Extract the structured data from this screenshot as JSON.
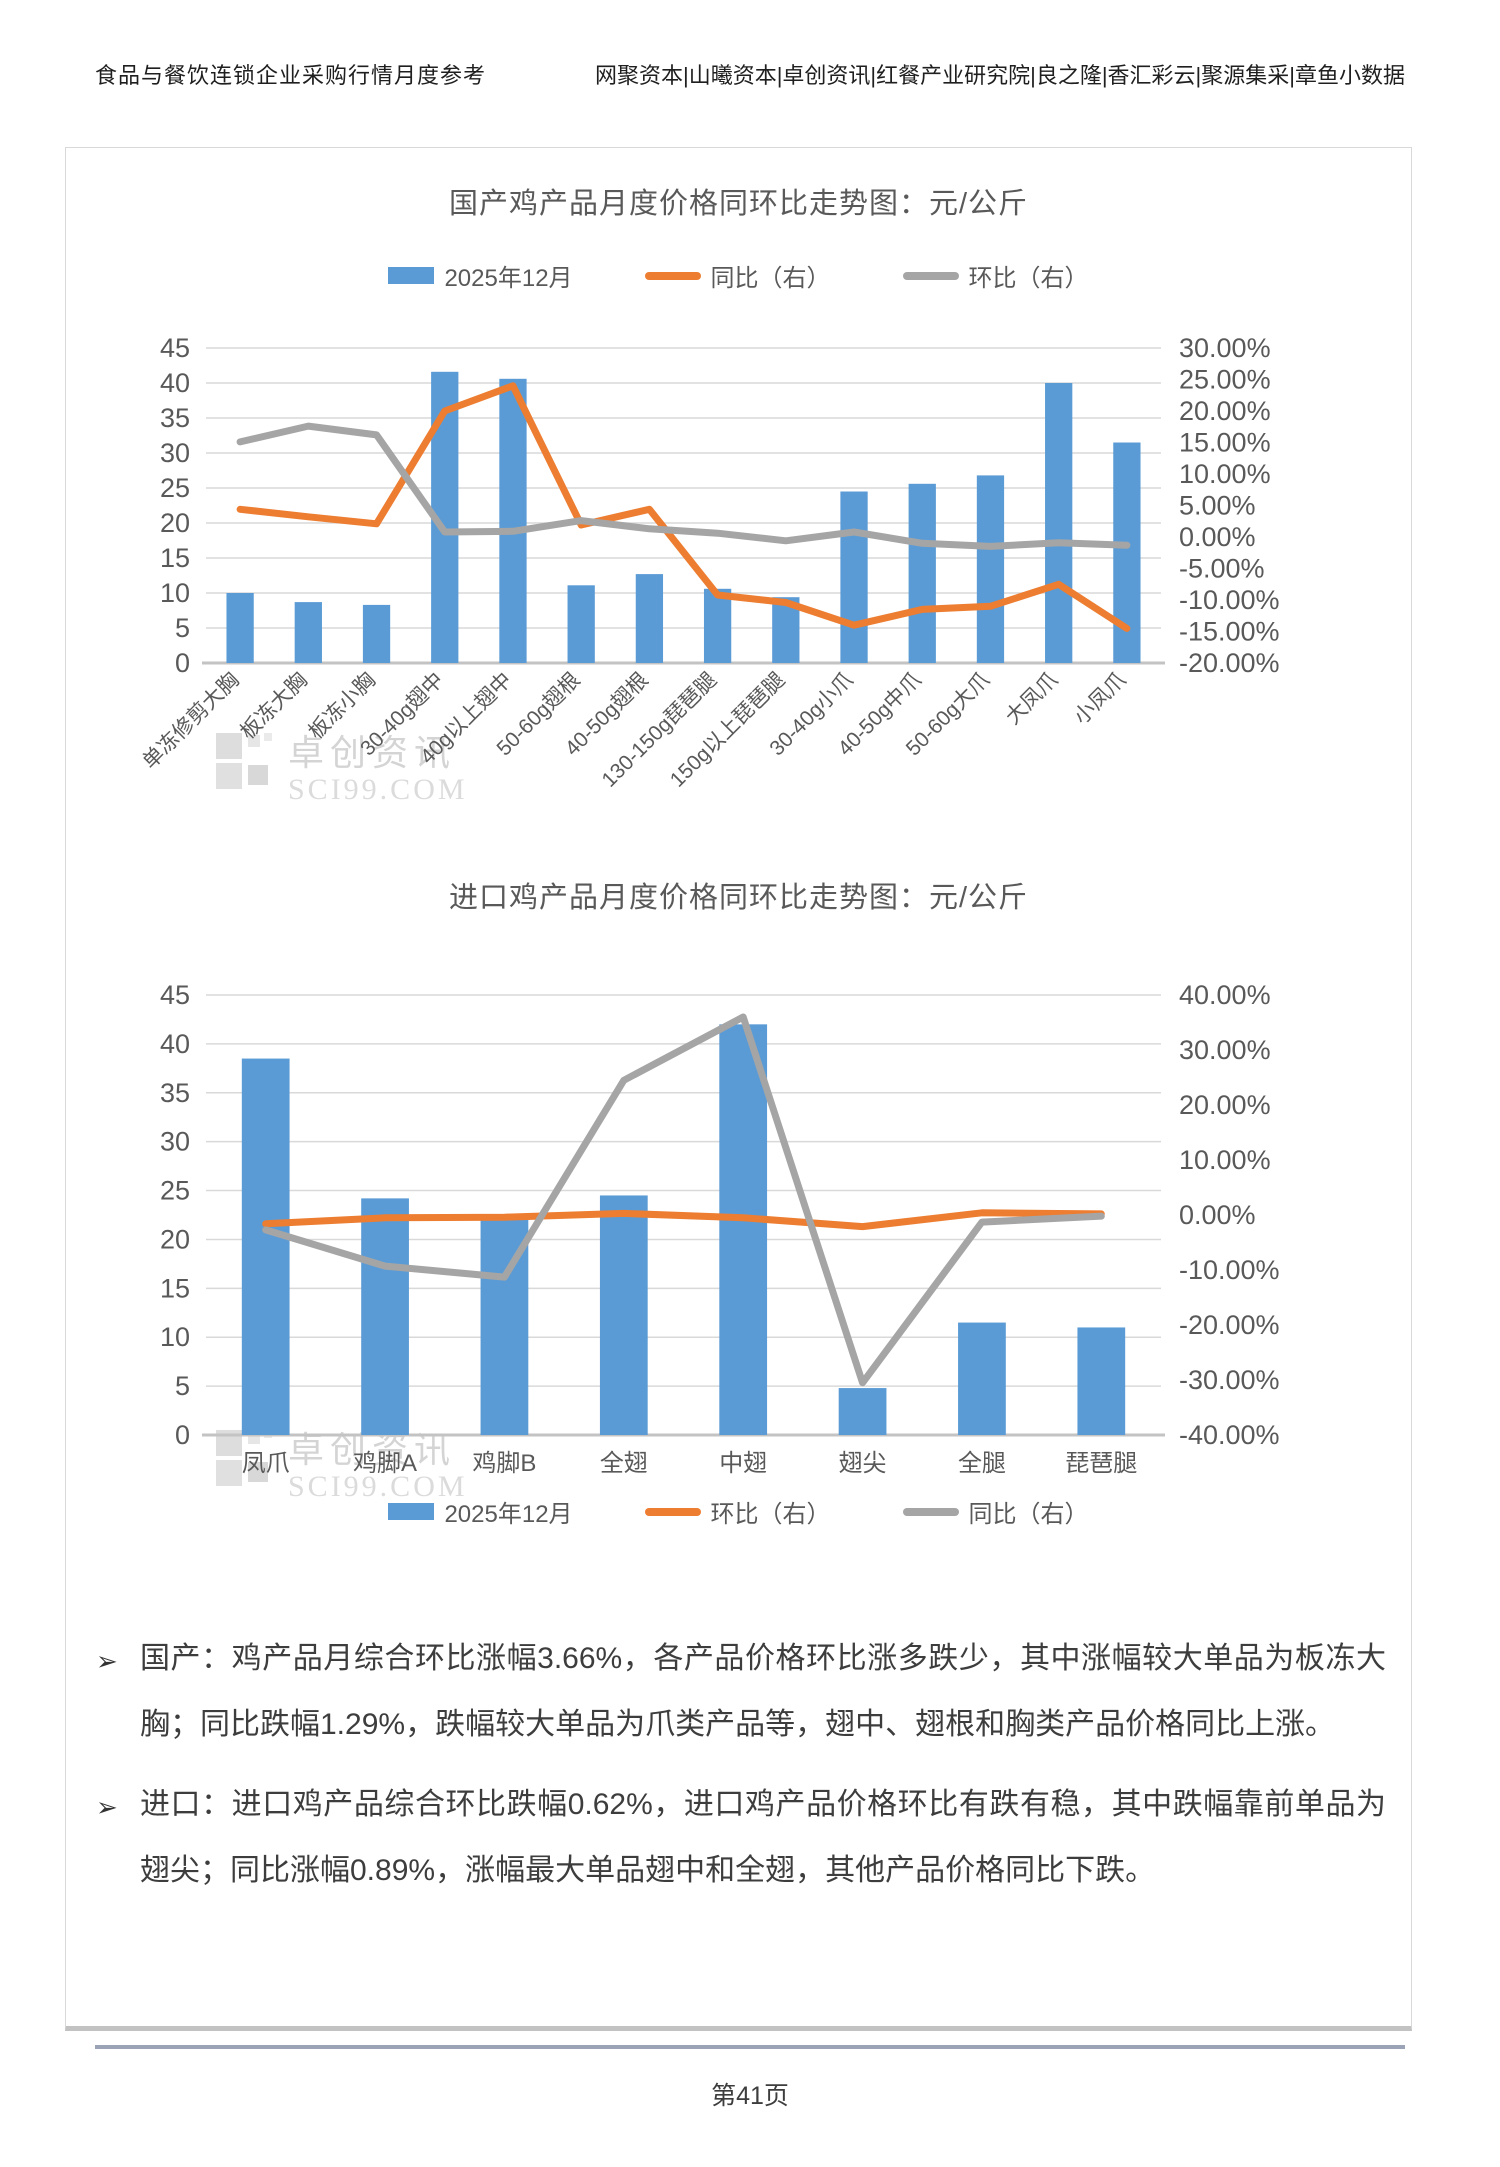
{
  "header": {
    "left": "食品与餐饮连锁企业采购行情月度参考",
    "right": "网聚资本|山曦资本|卓创资讯|红餐产业研究院|良之隆|香汇彩云|聚源集采|章鱼小数据"
  },
  "colors": {
    "bar": "#5B9BD5",
    "orange": "#ED7D31",
    "gray": "#A5A5A5",
    "grid": "#D9D9D9",
    "axis": "#C3C3C3",
    "tick_text": "#595959"
  },
  "watermark": {
    "line1": "卓创资讯",
    "line2": "SCI99.COM"
  },
  "chart_data": [
    {
      "type": "bar",
      "title": "国产鸡产品月度价格同环比走势图：元/公斤",
      "legend": [
        "2025年12月",
        "同比（右）",
        "环比（右）"
      ],
      "categories": [
        "单冻修剪大胸",
        "板冻大胸",
        "板冻小胸",
        "30-40g翅中",
        "40g以上翅中",
        "50-60g翅根",
        "40-50g翅根",
        "130-150g琵琶腿",
        "150g以上琵琶腿",
        "30-40g小爪",
        "40-50g中爪",
        "50-60g大爪",
        "大凤爪",
        "小凤爪"
      ],
      "series": [
        {
          "name": "2025年12月",
          "kind": "bar",
          "axis": "left",
          "color": "#5B9BD5",
          "values": [
            10,
            8.7,
            8.3,
            41.6,
            40.6,
            11.1,
            12.7,
            10.6,
            9.4,
            24.5,
            25.6,
            26.8,
            40,
            31.5
          ]
        },
        {
          "name": "同比（右）",
          "kind": "line",
          "axis": "right",
          "color": "#ED7D31",
          "values": [
            4.4,
            3.2,
            2.1,
            20,
            24,
            1.9,
            4.4,
            -9.2,
            -10.4,
            -14,
            -11.5,
            -11,
            -7.5,
            -14.5
          ]
        },
        {
          "name": "环比（右）",
          "kind": "line",
          "axis": "right",
          "color": "#A5A5A5",
          "values": [
            15.1,
            17.6,
            16.2,
            0.8,
            0.9,
            2.6,
            1.3,
            0.6,
            -0.6,
            0.8,
            -1.0,
            -1.5,
            -0.9,
            -1.3
          ]
        }
      ],
      "left_axis": {
        "min": 0,
        "max": 45,
        "step": 5,
        "labels": [
          "45",
          "40",
          "35",
          "30",
          "25",
          "20",
          "15",
          "10",
          "5",
          "0"
        ]
      },
      "right_axis": {
        "min": -20,
        "max": 30,
        "step": 5,
        "labels": [
          "30.00%",
          "25.00%",
          "20.00%",
          "15.00%",
          "10.00%",
          "5.00%",
          "0.00%",
          "-5.00%",
          "-10.00%",
          "-15.00%",
          "-20.00%"
        ]
      },
      "grid": true,
      "legend_position": "top"
    },
    {
      "type": "bar",
      "title": "进口鸡产品月度价格同环比走势图：元/公斤",
      "legend": [
        "2025年12月",
        "环比（右）",
        "同比（右）"
      ],
      "categories": [
        "凤爪",
        "鸡脚A",
        "鸡脚B",
        "全翅",
        "中翅",
        "翅尖",
        "全腿",
        "琵琶腿"
      ],
      "series": [
        {
          "name": "2025年12月",
          "kind": "bar",
          "axis": "left",
          "color": "#5B9BD5",
          "values": [
            38.5,
            24.2,
            22.5,
            24.5,
            42,
            4.8,
            11.5,
            11
          ]
        },
        {
          "name": "环比（右）",
          "kind": "line",
          "axis": "right",
          "color": "#ED7D31",
          "values": [
            -1.6,
            -0.5,
            -0.4,
            0.3,
            -0.5,
            -2.1,
            0.4,
            0.2
          ]
        },
        {
          "name": "同比（右）",
          "kind": "line",
          "axis": "right",
          "color": "#A5A5A5",
          "values": [
            -2.7,
            -9.3,
            -11.3,
            24.5,
            36,
            -30.5,
            -1.3,
            -0.2
          ]
        }
      ],
      "left_axis": {
        "min": 0,
        "max": 45,
        "step": 5,
        "labels": [
          "45",
          "40",
          "35",
          "30",
          "25",
          "20",
          "15",
          "10",
          "5",
          "0"
        ]
      },
      "right_axis": {
        "min": -40,
        "max": 40,
        "step": 10,
        "labels": [
          "40.00%",
          "30.00%",
          "20.00%",
          "10.00%",
          "0.00%",
          "-10.00%",
          "-20.00%",
          "-30.00%",
          "-40.00%"
        ]
      },
      "grid": true,
      "legend_position": "bottom"
    }
  ],
  "bullets": [
    {
      "marker": "➢",
      "text": "国产：鸡产品月综合环比涨幅3.66%，各产品价格环比涨多跌少，其中涨幅较大单品为板冻大胸；同比跌幅1.29%，跌幅较大单品为爪类产品等，翅中、翅根和胸类产品价格同比上涨。"
    },
    {
      "marker": "➢",
      "text": "进口：进口鸡产品综合环比跌幅0.62%，进口鸡产品价格环比有跌有稳，其中跌幅靠前单品为翅尖；同比涨幅0.89%，涨幅最大单品翅中和全翅，其他产品价格同比下跌。"
    }
  ],
  "footer": {
    "page": "第41页"
  }
}
